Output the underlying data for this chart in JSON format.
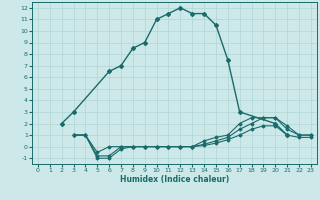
{
  "title": "",
  "xlabel": "Humidex (Indice chaleur)",
  "background_color": "#cce8e8",
  "grid_color": "#b0d4d4",
  "line_color": "#1a6b6b",
  "xlim": [
    -0.5,
    23.5
  ],
  "ylim": [
    -1.5,
    12.5
  ],
  "xticks": [
    0,
    1,
    2,
    3,
    4,
    5,
    6,
    7,
    8,
    9,
    10,
    11,
    12,
    13,
    14,
    15,
    16,
    17,
    18,
    19,
    20,
    21,
    22,
    23
  ],
  "yticks": [
    -1,
    0,
    1,
    2,
    3,
    4,
    5,
    6,
    7,
    8,
    9,
    10,
    11,
    12
  ],
  "curve1_x": [
    2,
    3,
    6,
    7,
    8,
    9,
    10,
    11,
    12,
    13,
    14,
    15,
    16,
    17,
    20,
    21
  ],
  "curve1_y": [
    2,
    3,
    6.5,
    7,
    8.5,
    9,
    11,
    11.5,
    12,
    11.5,
    11.5,
    10.5,
    7.5,
    3,
    2,
    1
  ],
  "curve2_x": [
    3,
    4,
    5,
    6,
    7,
    8,
    9,
    10,
    11,
    12,
    13,
    14,
    15,
    16,
    17,
    18,
    19,
    20,
    21,
    22,
    23
  ],
  "curve2_y": [
    1,
    1,
    -0.5,
    0,
    0,
    0,
    0,
    0,
    0,
    0,
    0,
    0.5,
    0.8,
    1.0,
    2.0,
    2.5,
    2.5,
    2.5,
    1.8,
    1.0,
    1.0
  ],
  "curve3_x": [
    3,
    4,
    5,
    6,
    7,
    8,
    9,
    10,
    11,
    12,
    13,
    14,
    15,
    16,
    17,
    18,
    19,
    20,
    21,
    22,
    23
  ],
  "curve3_y": [
    1,
    1,
    -1.0,
    -1.0,
    -0.2,
    0,
    0,
    0,
    0,
    0,
    0,
    0.2,
    0.5,
    0.8,
    1.5,
    2.0,
    2.5,
    2.5,
    1.5,
    1.0,
    1.0
  ],
  "curve4_x": [
    3,
    4,
    5,
    6,
    7,
    8,
    9,
    10,
    11,
    12,
    13,
    14,
    15,
    16,
    17,
    18,
    19,
    20,
    21,
    22,
    23
  ],
  "curve4_y": [
    1,
    1,
    -0.8,
    -0.8,
    0,
    0,
    0,
    0,
    0,
    0,
    0,
    0.1,
    0.3,
    0.6,
    1.0,
    1.5,
    1.8,
    1.8,
    1.0,
    0.8,
    0.8
  ]
}
